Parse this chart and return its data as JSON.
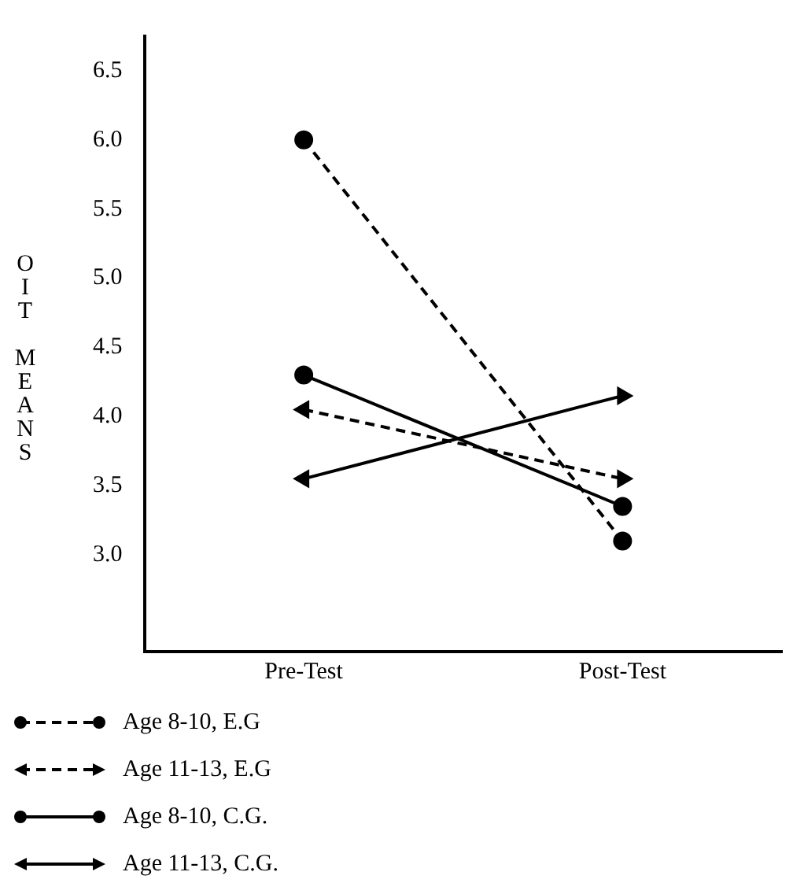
{
  "chart_data": {
    "type": "line",
    "ylabel": "OIT MEANS",
    "categories": [
      "Pre-Test",
      "Post-Test"
    ],
    "ylim": [
      2.3,
      6.75
    ],
    "yticks": [
      {
        "value": 3,
        "label": "3.0"
      },
      3.5,
      {
        "value": 4,
        "label": "4.0"
      },
      4.5,
      {
        "value": 5,
        "label": "5.0"
      },
      5.5,
      {
        "value": 6,
        "label": "6.0"
      },
      6.5
    ],
    "grid": false,
    "legend": "bottom",
    "series": [
      {
        "name": "Age 8-10, E.G",
        "color": "#000000",
        "values": [
          6.0,
          3.1
        ],
        "marker": "circle",
        "line_style": "dashed"
      },
      {
        "name": "Age 11-13, E.G",
        "color": "#000000",
        "values": [
          4.05,
          3.55
        ],
        "marker": "triangle",
        "line_style": "dashed"
      },
      {
        "name": "Age 8-10, C.G.",
        "color": "#000000",
        "values": [
          4.3,
          3.35
        ],
        "marker": "circle",
        "line_style": "solid"
      },
      {
        "name": "Age 11-13, C.G.",
        "color": "#000000",
        "values": [
          3.55,
          4.15
        ],
        "marker": "triangle",
        "line_style": "solid"
      }
    ]
  }
}
